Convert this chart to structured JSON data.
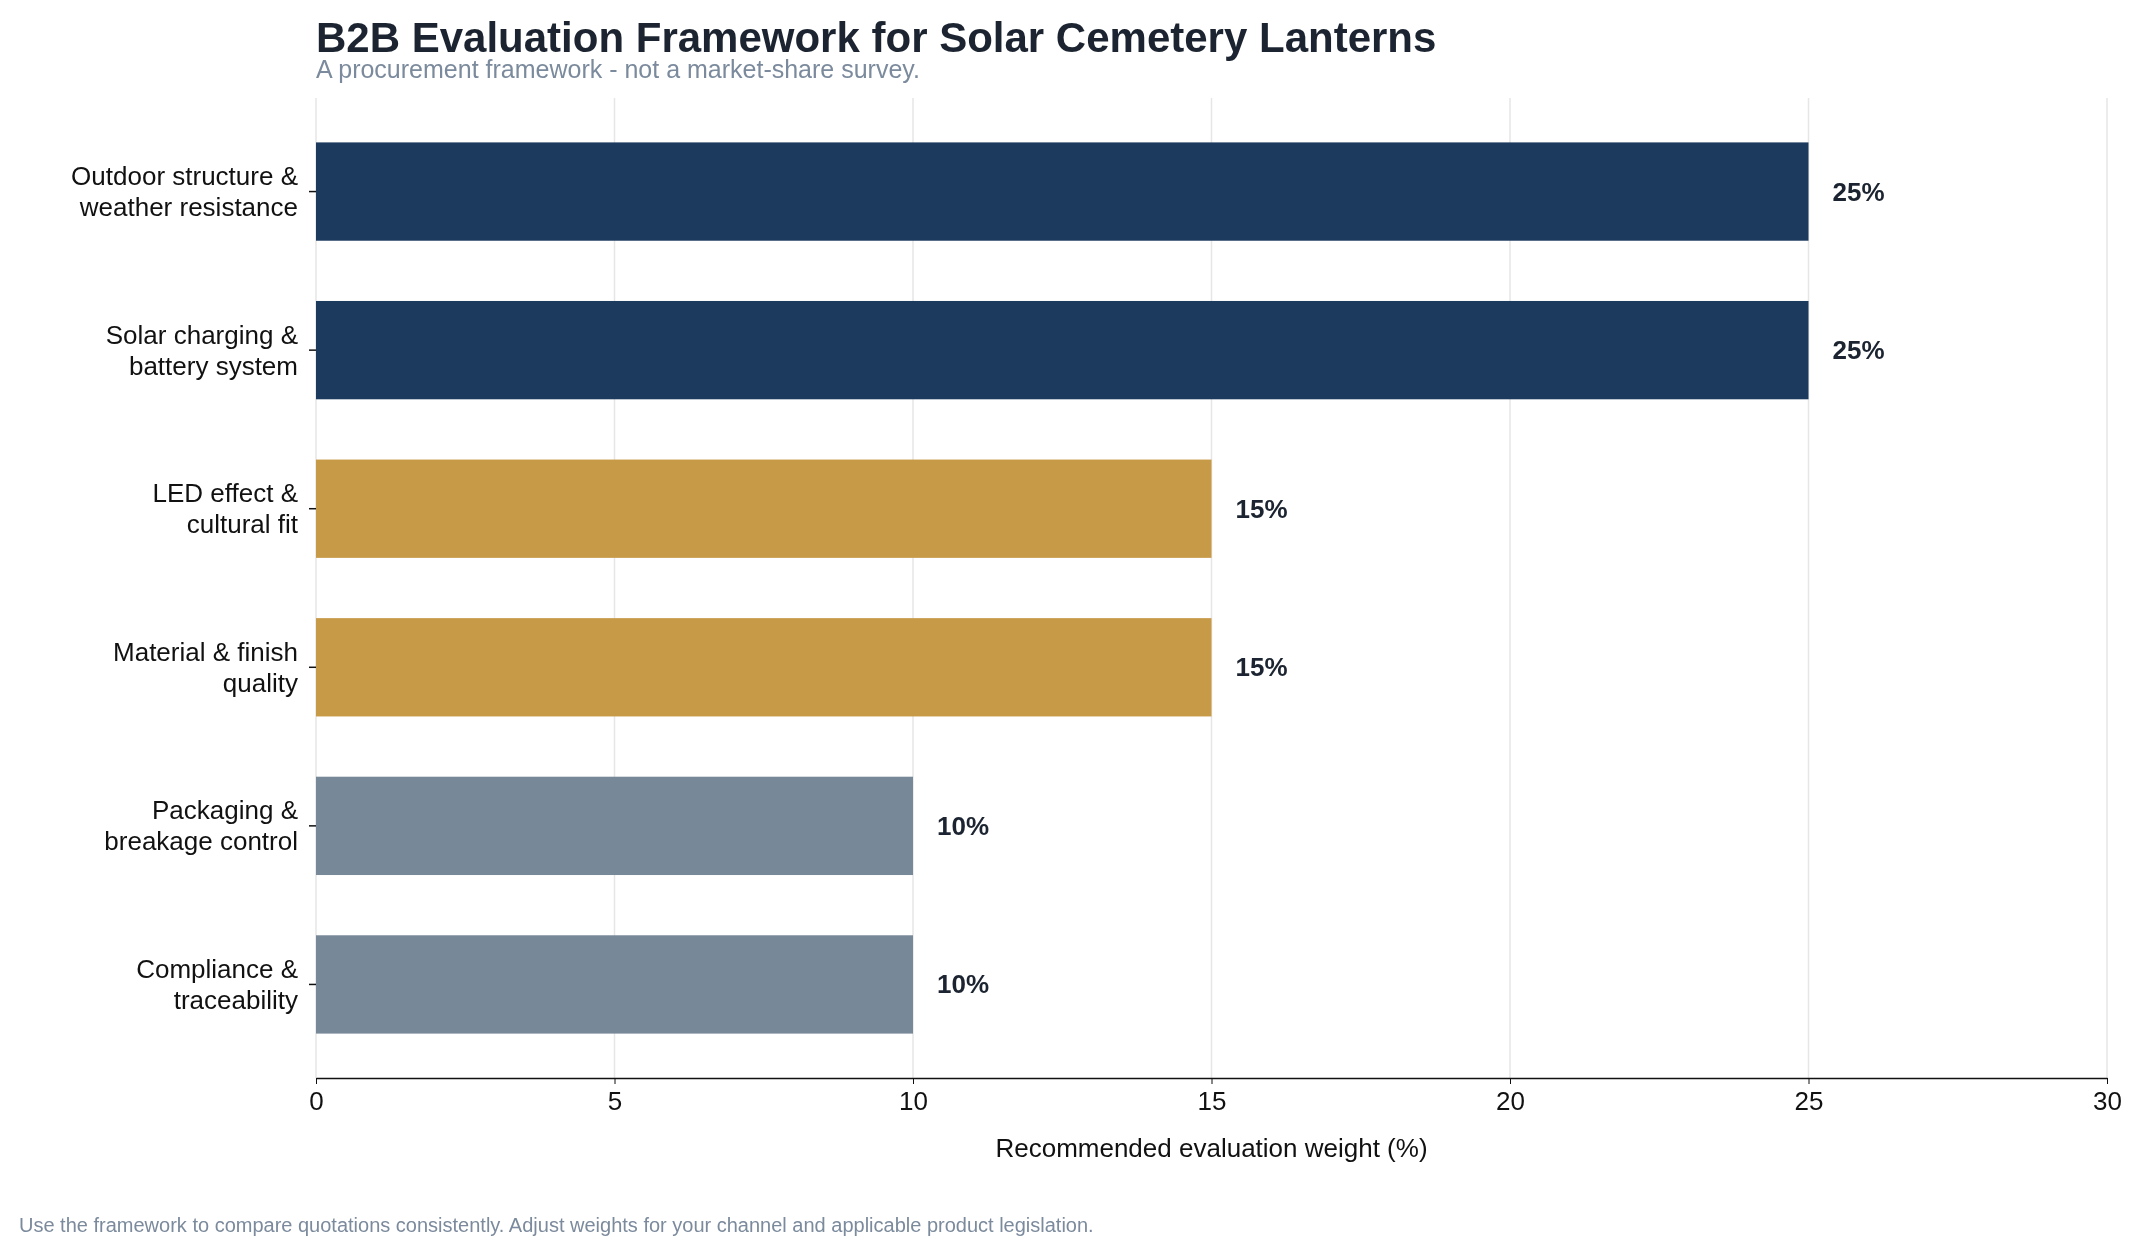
{
  "chart_data": {
    "type": "bar",
    "orientation": "horizontal",
    "title": "B2B Evaluation Framework for Solar Cemetery Lanterns",
    "subtitle": "A procurement framework - not a market-share survey.",
    "xlabel": "Recommended evaluation weight (%)",
    "categories": [
      "Outdoor structure & weather resistance",
      "Solar charging & battery system",
      "LED effect & cultural fit",
      "Material & finish quality",
      "Packaging & breakage control",
      "Compliance & traceability"
    ],
    "values": [
      25,
      25,
      15,
      15,
      10,
      10
    ],
    "colors": [
      "#1b3a5e",
      "#1b3a5e",
      "#c79a48",
      "#c79a48",
      "#778899",
      "#778899"
    ],
    "value_labels": [
      "25%",
      "25%",
      "15%",
      "15%",
      "10%",
      "10%"
    ],
    "xlim": [
      0,
      30
    ],
    "xticks": [
      0,
      5,
      10,
      15,
      20,
      25,
      30
    ],
    "grid": "x",
    "annotations": [
      "Use the framework to compare quotations consistently. Adjust weights for your channel and applicable product legislation."
    ]
  }
}
